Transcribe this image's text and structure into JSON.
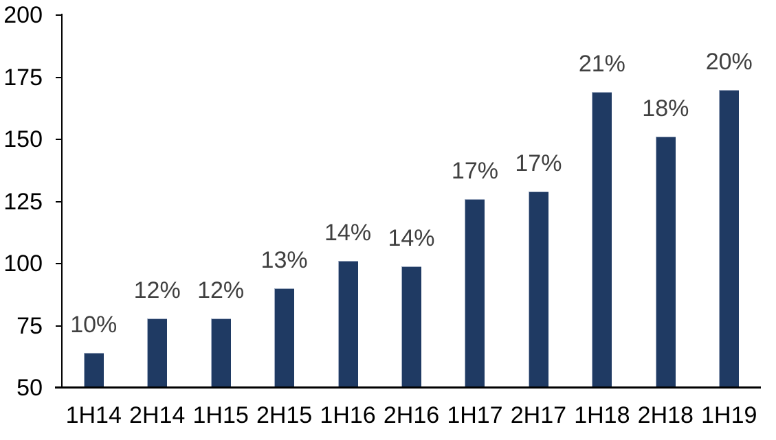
{
  "chart_data": {
    "type": "bar",
    "title": "",
    "xlabel": "",
    "ylabel": "",
    "categories": [
      "1H14",
      "2H14",
      "1H15",
      "2H15",
      "1H16",
      "2H16",
      "1H17",
      "2H17",
      "1H18",
      "2H18",
      "1H19"
    ],
    "values": [
      64,
      78,
      78,
      90,
      101,
      99,
      126,
      129,
      169,
      151,
      170
    ],
    "bar_labels": [
      "10%",
      "12%",
      "12%",
      "13%",
      "14%",
      "14%",
      "17%",
      "17%",
      "21%",
      "18%",
      "20%"
    ],
    "ylim": [
      50,
      200
    ],
    "yticks": [
      50,
      75,
      100,
      125,
      150,
      175,
      200
    ],
    "grid": false,
    "legend": false,
    "colors": {
      "bar_fill": "#1F3A63",
      "bar_edge": "#A3AFC4",
      "value_label": "#404040",
      "axis": "#000000",
      "background": "#FFFFFF"
    }
  }
}
